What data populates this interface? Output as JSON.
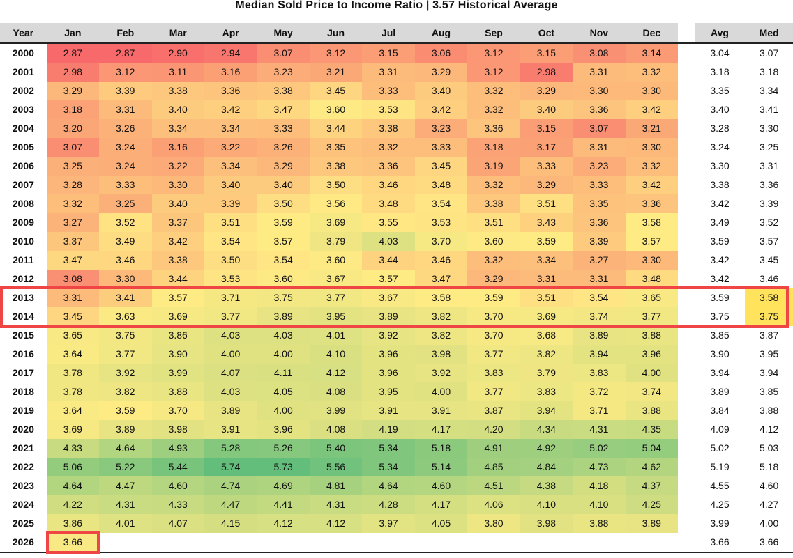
{
  "chart_data": {
    "type": "table",
    "title": "Median Sold Price to Income Ratio | 3.57 Historical Average",
    "columns": [
      "Year",
      "Jan",
      "Feb",
      "Mar",
      "Apr",
      "May",
      "Jun",
      "Jul",
      "Aug",
      "Sep",
      "Oct",
      "Nov",
      "Dec",
      "Avg",
      "Med"
    ],
    "rows": [
      {
        "year": "2000",
        "months": [
          "2.87",
          "2.87",
          "2.90",
          "2.94",
          "3.07",
          "3.12",
          "3.15",
          "3.06",
          "3.12",
          "3.15",
          "3.08",
          "3.14"
        ],
        "avg": "3.04",
        "med": "3.07"
      },
      {
        "year": "2001",
        "months": [
          "2.98",
          "3.12",
          "3.11",
          "3.16",
          "3.23",
          "3.21",
          "3.31",
          "3.29",
          "3.12",
          "2.98",
          "3.31",
          "3.32"
        ],
        "avg": "3.18",
        "med": "3.18"
      },
      {
        "year": "2002",
        "months": [
          "3.29",
          "3.39",
          "3.38",
          "3.36",
          "3.38",
          "3.45",
          "3.33",
          "3.40",
          "3.32",
          "3.29",
          "3.30",
          "3.30"
        ],
        "avg": "3.35",
        "med": "3.34"
      },
      {
        "year": "2003",
        "months": [
          "3.18",
          "3.31",
          "3.40",
          "3.42",
          "3.47",
          "3.60",
          "3.53",
          "3.42",
          "3.32",
          "3.40",
          "3.36",
          "3.42"
        ],
        "avg": "3.40",
        "med": "3.41"
      },
      {
        "year": "2004",
        "months": [
          "3.20",
          "3.26",
          "3.34",
          "3.34",
          "3.33",
          "3.44",
          "3.38",
          "3.23",
          "3.36",
          "3.15",
          "3.07",
          "3.21"
        ],
        "avg": "3.28",
        "med": "3.30"
      },
      {
        "year": "2005",
        "months": [
          "3.07",
          "3.24",
          "3.16",
          "3.22",
          "3.26",
          "3.35",
          "3.32",
          "3.33",
          "3.18",
          "3.17",
          "3.31",
          "3.30"
        ],
        "avg": "3.24",
        "med": "3.25"
      },
      {
        "year": "2006",
        "months": [
          "3.25",
          "3.24",
          "3.22",
          "3.34",
          "3.29",
          "3.38",
          "3.36",
          "3.45",
          "3.19",
          "3.33",
          "3.23",
          "3.32"
        ],
        "avg": "3.30",
        "med": "3.31"
      },
      {
        "year": "2007",
        "months": [
          "3.28",
          "3.33",
          "3.30",
          "3.40",
          "3.40",
          "3.50",
          "3.46",
          "3.48",
          "3.32",
          "3.29",
          "3.33",
          "3.42"
        ],
        "avg": "3.38",
        "med": "3.36"
      },
      {
        "year": "2008",
        "months": [
          "3.32",
          "3.25",
          "3.40",
          "3.39",
          "3.50",
          "3.56",
          "3.48",
          "3.54",
          "3.38",
          "3.51",
          "3.35",
          "3.36"
        ],
        "avg": "3.42",
        "med": "3.39"
      },
      {
        "year": "2009",
        "months": [
          "3.27",
          "3.52",
          "3.37",
          "3.51",
          "3.59",
          "3.69",
          "3.55",
          "3.53",
          "3.51",
          "3.43",
          "3.36",
          "3.58"
        ],
        "avg": "3.49",
        "med": "3.52"
      },
      {
        "year": "2010",
        "months": [
          "3.37",
          "3.49",
          "3.42",
          "3.54",
          "3.57",
          "3.79",
          "4.03",
          "3.70",
          "3.60",
          "3.59",
          "3.39",
          "3.57"
        ],
        "avg": "3.59",
        "med": "3.57"
      },
      {
        "year": "2011",
        "months": [
          "3.47",
          "3.46",
          "3.38",
          "3.50",
          "3.54",
          "3.60",
          "3.44",
          "3.46",
          "3.32",
          "3.34",
          "3.27",
          "3.30"
        ],
        "avg": "3.42",
        "med": "3.45"
      },
      {
        "year": "2012",
        "months": [
          "3.08",
          "3.30",
          "3.44",
          "3.53",
          "3.60",
          "3.67",
          "3.57",
          "3.47",
          "3.29",
          "3.31",
          "3.31",
          "3.48"
        ],
        "avg": "3.42",
        "med": "3.46"
      },
      {
        "year": "2013",
        "months": [
          "3.31",
          "3.41",
          "3.57",
          "3.71",
          "3.75",
          "3.77",
          "3.67",
          "3.58",
          "3.59",
          "3.51",
          "3.54",
          "3.65"
        ],
        "avg": "3.59",
        "med": "3.58"
      },
      {
        "year": "2014",
        "months": [
          "3.45",
          "3.63",
          "3.69",
          "3.77",
          "3.89",
          "3.95",
          "3.89",
          "3.82",
          "3.70",
          "3.69",
          "3.74",
          "3.77"
        ],
        "avg": "3.75",
        "med": "3.75"
      },
      {
        "year": "2015",
        "months": [
          "3.65",
          "3.75",
          "3.86",
          "4.03",
          "4.03",
          "4.01",
          "3.92",
          "3.82",
          "3.70",
          "3.68",
          "3.89",
          "3.88"
        ],
        "avg": "3.85",
        "med": "3.87"
      },
      {
        "year": "2016",
        "months": [
          "3.64",
          "3.77",
          "3.90",
          "4.00",
          "4.00",
          "4.10",
          "3.96",
          "3.98",
          "3.77",
          "3.82",
          "3.94",
          "3.96"
        ],
        "avg": "3.90",
        "med": "3.95"
      },
      {
        "year": "2017",
        "months": [
          "3.78",
          "3.92",
          "3.99",
          "4.07",
          "4.11",
          "4.12",
          "3.96",
          "3.92",
          "3.83",
          "3.79",
          "3.83",
          "4.00"
        ],
        "avg": "3.94",
        "med": "3.94"
      },
      {
        "year": "2018",
        "months": [
          "3.78",
          "3.82",
          "3.88",
          "4.03",
          "4.05",
          "4.08",
          "3.95",
          "4.00",
          "3.77",
          "3.83",
          "3.72",
          "3.74"
        ],
        "avg": "3.89",
        "med": "3.85"
      },
      {
        "year": "2019",
        "months": [
          "3.64",
          "3.59",
          "3.70",
          "3.89",
          "4.00",
          "3.99",
          "3.91",
          "3.91",
          "3.87",
          "3.94",
          "3.71",
          "3.88"
        ],
        "avg": "3.84",
        "med": "3.88"
      },
      {
        "year": "2020",
        "months": [
          "3.69",
          "3.89",
          "3.98",
          "3.91",
          "3.96",
          "4.08",
          "4.19",
          "4.17",
          "4.20",
          "4.34",
          "4.31",
          "4.35"
        ],
        "avg": "4.09",
        "med": "4.12"
      },
      {
        "year": "2021",
        "months": [
          "4.33",
          "4.64",
          "4.93",
          "5.28",
          "5.26",
          "5.40",
          "5.34",
          "5.18",
          "4.91",
          "4.92",
          "5.02",
          "5.04"
        ],
        "avg": "5.02",
        "med": "5.03"
      },
      {
        "year": "2022",
        "months": [
          "5.06",
          "5.22",
          "5.44",
          "5.74",
          "5.73",
          "5.56",
          "5.34",
          "5.14",
          "4.85",
          "4.84",
          "4.73",
          "4.62"
        ],
        "avg": "5.19",
        "med": "5.18"
      },
      {
        "year": "2023",
        "months": [
          "4.64",
          "4.47",
          "4.60",
          "4.74",
          "4.69",
          "4.81",
          "4.64",
          "4.60",
          "4.51",
          "4.38",
          "4.18",
          "4.37"
        ],
        "avg": "4.55",
        "med": "4.60"
      },
      {
        "year": "2024",
        "months": [
          "4.22",
          "4.31",
          "4.33",
          "4.47",
          "4.41",
          "4.31",
          "4.28",
          "4.17",
          "4.06",
          "4.10",
          "4.10",
          "4.25"
        ],
        "avg": "4.25",
        "med": "4.27"
      },
      {
        "year": "2025",
        "months": [
          "3.86",
          "4.01",
          "4.07",
          "4.15",
          "4.12",
          "4.12",
          "3.97",
          "4.05",
          "3.80",
          "3.98",
          "3.88",
          "3.89"
        ],
        "avg": "3.99",
        "med": "4.00"
      },
      {
        "year": "2026",
        "months": [
          "3.66",
          "",
          "",
          "",
          "",
          "",
          "",
          "",
          "",
          "",
          "",
          ""
        ],
        "avg": "3.66",
        "med": "3.66"
      }
    ],
    "color_scale": {
      "low": "#f8696b",
      "mid": "#ffeb84",
      "high": "#63be7b",
      "low_value": 2.87,
      "mid_value": 3.57,
      "high_value": 5.74
    },
    "highlight_color": "#f04545",
    "highlight_rows": [
      "2013",
      "2014"
    ],
    "highlight_cells": [
      {
        "year": "2026",
        "column": "Jan"
      }
    ]
  }
}
